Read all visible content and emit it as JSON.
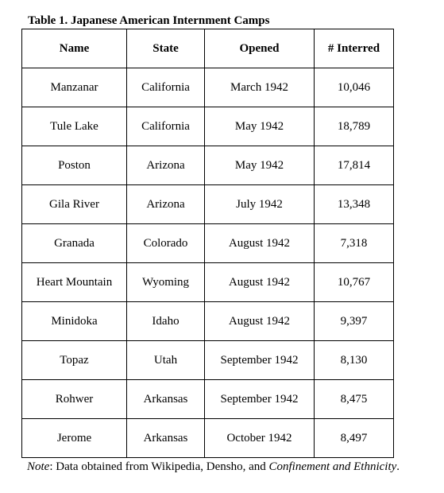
{
  "caption": "Table 1. Japanese American Internment Camps",
  "table": {
    "headers": [
      "Name",
      "State",
      "Opened",
      "# Interred"
    ],
    "rows": [
      [
        "Manzanar",
        "California",
        "March 1942",
        "10,046"
      ],
      [
        "Tule Lake",
        "California",
        "May 1942",
        "18,789"
      ],
      [
        "Poston",
        "Arizona",
        "May 1942",
        "17,814"
      ],
      [
        "Gila River",
        "Arizona",
        "July 1942",
        "13,348"
      ],
      [
        "Granada",
        "Colorado",
        "August 1942",
        "7,318"
      ],
      [
        "Heart Mountain",
        "Wyoming",
        "August 1942",
        "10,767"
      ],
      [
        "Minidoka",
        "Idaho",
        "August 1942",
        "9,397"
      ],
      [
        "Topaz",
        "Utah",
        "September 1942",
        "8,130"
      ],
      [
        "Rohwer",
        "Arkansas",
        "September 1942",
        "8,475"
      ],
      [
        "Jerome",
        "Arkansas",
        "October 1942",
        "8,497"
      ]
    ]
  },
  "note": {
    "label": "Note",
    "text": ": Data obtained from Wikipedia, Densho, and ",
    "source_title": "Confinement and Ethnicity",
    "end": "."
  }
}
